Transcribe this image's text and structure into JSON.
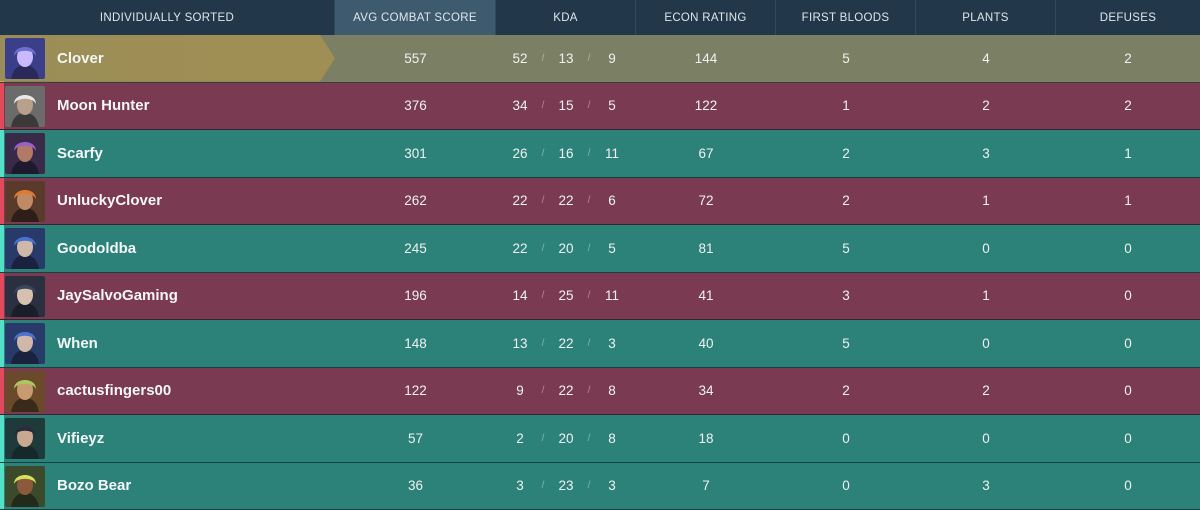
{
  "header": {
    "player": "INDIVIDUALLY SORTED",
    "acs": "AVG COMBAT SCORE",
    "kda": "KDA",
    "econ": "ECON RATING",
    "fb": "FIRST BLOODS",
    "plants": "PLANTS",
    "defuses": "DEFUSES"
  },
  "colors": {
    "red": "#7a3a52",
    "teal": "#2c8278",
    "gold": "#9a8d58"
  },
  "players": [
    {
      "name": "Clover",
      "team": "gold",
      "acs": "557",
      "k": "52",
      "d": "13",
      "a": "9",
      "econ": "144",
      "fb": "5",
      "plants": "4",
      "defuses": "2",
      "avatar": "purple-hood-agent-icon"
    },
    {
      "name": "Moon Hunter",
      "team": "red",
      "acs": "376",
      "k": "34",
      "d": "15",
      "a": "5",
      "econ": "122",
      "fb": "1",
      "plants": "2",
      "defuses": "2",
      "avatar": "cowboy-hat-agent-icon"
    },
    {
      "name": "Scarfy",
      "team": "teal",
      "acs": "301",
      "k": "26",
      "d": "16",
      "a": "11",
      "econ": "67",
      "fb": "2",
      "plants": "3",
      "defuses": "1",
      "avatar": "purple-hair-agent-icon"
    },
    {
      "name": "UnluckyClover",
      "team": "red",
      "acs": "262",
      "k": "22",
      "d": "22",
      "a": "6",
      "econ": "72",
      "fb": "2",
      "plants": "1",
      "defuses": "1",
      "avatar": "orange-hair-agent-icon"
    },
    {
      "name": "Goodoldba",
      "team": "teal",
      "acs": "245",
      "k": "22",
      "d": "20",
      "a": "5",
      "econ": "81",
      "fb": "5",
      "plants": "0",
      "defuses": "0",
      "avatar": "blue-hair-agent-icon"
    },
    {
      "name": "JaySalvoGaming",
      "team": "red",
      "acs": "196",
      "k": "14",
      "d": "25",
      "a": "11",
      "econ": "41",
      "fb": "3",
      "plants": "1",
      "defuses": "0",
      "avatar": "dark-hair-agent-icon"
    },
    {
      "name": "When",
      "team": "teal",
      "acs": "148",
      "k": "13",
      "d": "22",
      "a": "3",
      "econ": "40",
      "fb": "5",
      "plants": "0",
      "defuses": "0",
      "avatar": "blue-hair-agent-icon"
    },
    {
      "name": "cactusfingers00",
      "team": "red",
      "acs": "122",
      "k": "9",
      "d": "22",
      "a": "8",
      "econ": "34",
      "fb": "2",
      "plants": "2",
      "defuses": "0",
      "avatar": "green-bandana-agent-icon"
    },
    {
      "name": "Vifieyz",
      "team": "teal",
      "acs": "57",
      "k": "2",
      "d": "20",
      "a": "8",
      "econ": "18",
      "fb": "0",
      "plants": "0",
      "defuses": "0",
      "avatar": "teal-hair-agent-icon"
    },
    {
      "name": "Bozo Bear",
      "team": "teal",
      "acs": "36",
      "k": "3",
      "d": "23",
      "a": "3",
      "econ": "7",
      "fb": "0",
      "plants": "3",
      "defuses": "0",
      "avatar": "blonde-hair-agent-icon"
    }
  ]
}
